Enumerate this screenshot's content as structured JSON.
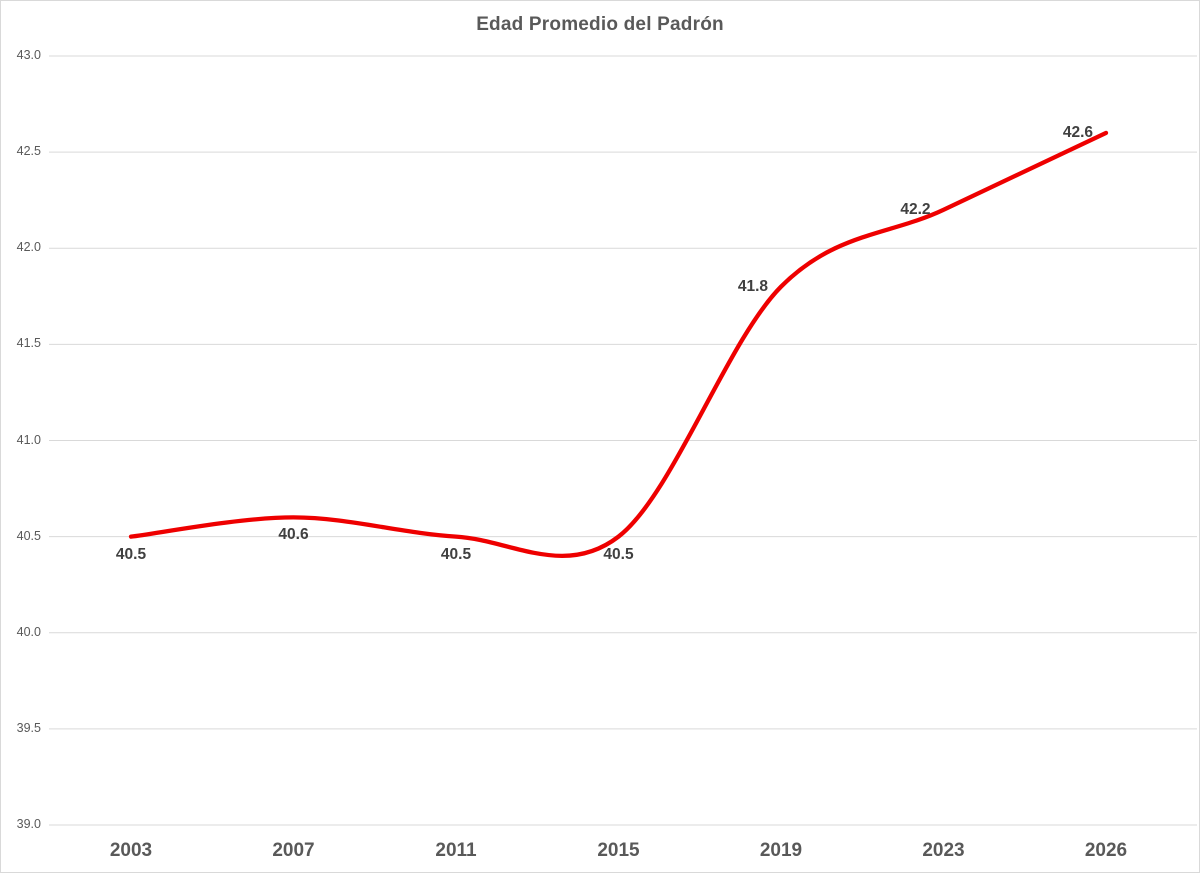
{
  "title": "Edad Promedio del Padrón",
  "colors": {
    "line": "#ee0000",
    "grid": "#d9d9d9",
    "border": "#d9d9d9",
    "title_text": "#595959",
    "axis_text": "#595959",
    "data_label_text": "#404040",
    "background": "#ffffff"
  },
  "chart_data": {
    "type": "line",
    "title": "Edad Promedio del Padrón",
    "categories": [
      "2003",
      "2007",
      "2011",
      "2015",
      "2019",
      "2023",
      "2026"
    ],
    "values": [
      40.5,
      40.6,
      40.5,
      40.5,
      41.8,
      42.2,
      42.6
    ],
    "data_labels": [
      "40.5",
      "40.6",
      "40.5",
      "40.5",
      "41.8",
      "42.2",
      "42.6"
    ],
    "label_placement": [
      "below",
      "below",
      "below",
      "below",
      "left",
      "left",
      "left"
    ],
    "y_ticks": [
      "43.0",
      "42.5",
      "42.0",
      "41.5",
      "41.0",
      "40.5",
      "40.0",
      "39.5",
      "39.0"
    ],
    "ylim": [
      39.0,
      43.0
    ],
    "xlabel": "",
    "ylabel": "",
    "line_smooth": true,
    "grid": "horizontal-only",
    "legend": "none"
  }
}
